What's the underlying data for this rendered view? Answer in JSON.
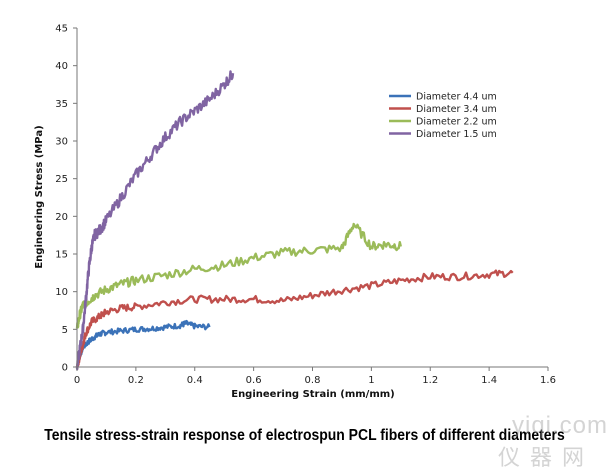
{
  "chart_data": {
    "type": "line",
    "title": "",
    "xlabel": "Engineering Strain (mm/mm)",
    "ylabel": "Engineering Stress (MPa)",
    "xlim": [
      0,
      1.6
    ],
    "ylim": [
      0,
      45
    ],
    "x_ticks": [
      "0",
      "0.2",
      "0.4",
      "0.6",
      "0.8",
      "1",
      "1.2",
      "1.4",
      "1.6"
    ],
    "y_ticks": [
      "0",
      "5",
      "10",
      "15",
      "20",
      "25",
      "30",
      "35",
      "40",
      "45"
    ],
    "grid": false,
    "legend_position": "top-right",
    "series": [
      {
        "name": "Diameter 4.4 um",
        "color": "#3b72b8",
        "x": [
          0,
          0.01,
          0.02,
          0.04,
          0.06,
          0.08,
          0.1,
          0.15,
          0.2,
          0.25,
          0.3,
          0.35,
          0.37,
          0.4,
          0.45
        ],
        "y": [
          0,
          1.5,
          2.6,
          3.4,
          4.0,
          4.4,
          4.6,
          4.8,
          5.0,
          5.1,
          5.3,
          5.5,
          5.8,
          5.4,
          5.3
        ]
      },
      {
        "name": "Diameter 3.4 um",
        "color": "#c0504d",
        "x": [
          0,
          0.01,
          0.02,
          0.03,
          0.05,
          0.08,
          0.1,
          0.15,
          0.2,
          0.3,
          0.4,
          0.5,
          0.6,
          0.7,
          0.8,
          0.9,
          1.0,
          1.1,
          1.2,
          1.3,
          1.4,
          1.48
        ],
        "y": [
          0,
          1.5,
          3.0,
          4.5,
          6.0,
          6.8,
          7.3,
          7.8,
          8.0,
          8.6,
          9.0,
          9.0,
          9.0,
          8.8,
          9.5,
          10.2,
          10.8,
          11.5,
          12.0,
          12.0,
          12.3,
          12.5
        ]
      },
      {
        "name": "Diameter 2.2 um",
        "color": "#9bbb59",
        "x": [
          0,
          0.01,
          0.02,
          0.04,
          0.06,
          0.1,
          0.15,
          0.2,
          0.3,
          0.4,
          0.5,
          0.6,
          0.7,
          0.8,
          0.9,
          0.94,
          1.0,
          1.05,
          1.1
        ],
        "y": [
          5.0,
          7.0,
          8.2,
          8.8,
          9.5,
          10.3,
          11.0,
          11.5,
          12.2,
          13.0,
          13.5,
          14.5,
          15.2,
          15.5,
          15.8,
          19.0,
          16.0,
          16.3,
          16.0
        ]
      },
      {
        "name": "Diameter 1.5 um",
        "color": "#8064a2",
        "x": [
          0,
          0.01,
          0.02,
          0.03,
          0.04,
          0.05,
          0.06,
          0.08,
          0.1,
          0.15,
          0.2,
          0.25,
          0.3,
          0.35,
          0.4,
          0.45,
          0.5,
          0.53
        ],
        "y": [
          0,
          2.5,
          5.0,
          9.0,
          13.0,
          16.0,
          17.5,
          18.3,
          19.5,
          22.5,
          25.5,
          28.0,
          30.5,
          32.5,
          34.0,
          35.5,
          37.5,
          39.0
        ]
      }
    ]
  },
  "caption": "Tensile stress-strain response of electrospun PCL fibers of different diameters",
  "watermark": {
    "line1": "yiqi.com",
    "line2": "仪器网"
  }
}
